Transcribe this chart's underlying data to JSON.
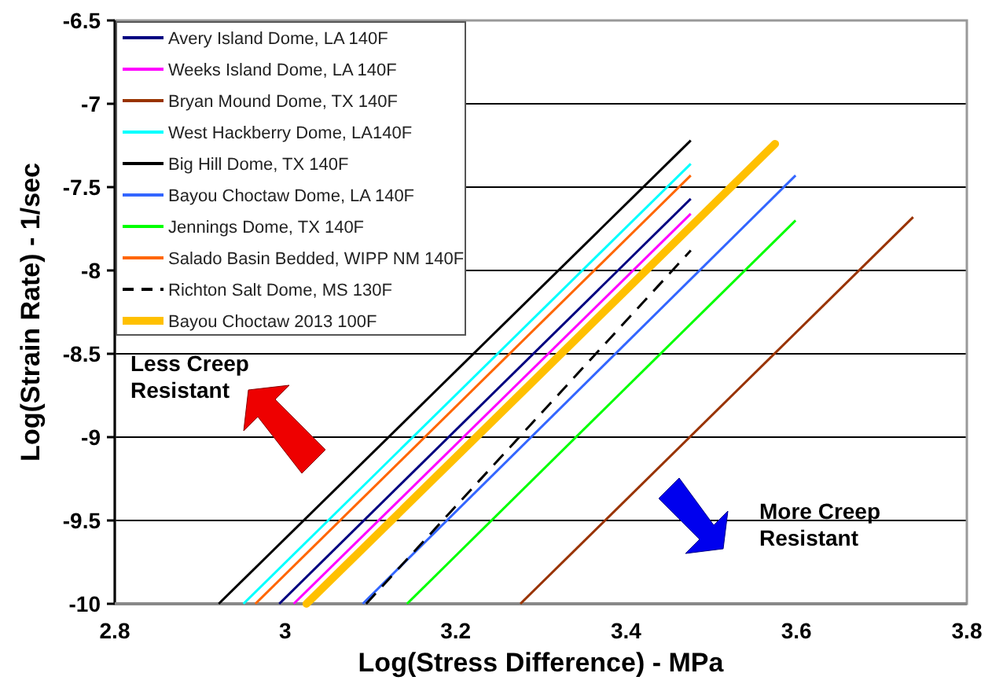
{
  "chart_data": {
    "type": "line",
    "xlabel": "Log(Stress Difference) - MPa",
    "ylabel": "Log(Strain Rate) - 1/sec",
    "xlim": [
      2.8,
      3.8
    ],
    "xticks": [
      2.8,
      3,
      3.2,
      3.4,
      3.6,
      3.8
    ],
    "ylim": [
      -10,
      -6.5
    ],
    "yticks": [
      -10,
      -9.5,
      -9,
      -8.5,
      -8,
      -7.5,
      -7,
      -6.5
    ],
    "grid": "y",
    "legend": "top left",
    "marker": "none",
    "series": [
      {
        "name": "Avery Island Dome, LA 140F",
        "color": "#000080",
        "x": [
          2.993,
          3.476
        ],
        "values": [
          -10,
          -7.57
        ]
      },
      {
        "name": "Weeks Island Dome, LA 140F",
        "color": "#ff00ff",
        "x": [
          3.01,
          3.476
        ],
        "values": [
          -10,
          -7.66
        ]
      },
      {
        "name": "Bryan Mound Dome, TX 140F",
        "color": "#993300",
        "x": [
          3.276,
          3.737
        ],
        "values": [
          -10,
          -7.68
        ]
      },
      {
        "name": "West Hackberry Dome, LA140F",
        "color": "#00ffff",
        "x": [
          2.951,
          3.476
        ],
        "values": [
          -10,
          -7.36
        ]
      },
      {
        "name": "Big Hill Dome, TX 140F",
        "color": "#000000",
        "x": [
          2.922,
          3.476
        ],
        "values": [
          -10,
          -7.22
        ]
      },
      {
        "name": "Bayou Choctaw Dome, LA 140F",
        "color": "#3366ff",
        "x": [
          3.091,
          3.599
        ],
        "values": [
          -10,
          -7.43
        ]
      },
      {
        "name": "Jennings Dome, TX 140F",
        "color": "#00ff00",
        "x": [
          3.143,
          3.599
        ],
        "values": [
          -10,
          -7.7
        ]
      },
      {
        "name": "Salado Basin Bedded, WIPP NM 140F",
        "color": "#ff6600",
        "x": [
          2.965,
          3.476
        ],
        "values": [
          -10,
          -7.43
        ]
      },
      {
        "name": "Richton Salt Dome, MS 130F",
        "color": "#000000",
        "line_style": "dashed",
        "x": [
          3.095,
          3.476
        ],
        "values": [
          -10,
          -7.88
        ]
      },
      {
        "name": "Bayou Choctaw 2013 100F",
        "color": "#ffc000",
        "x": [
          3.025,
          3.575
        ],
        "values": [
          -10,
          -7.24
        ]
      }
    ],
    "annotations": [
      "Less Creep Resistant",
      "More Creep Resistant"
    ]
  }
}
